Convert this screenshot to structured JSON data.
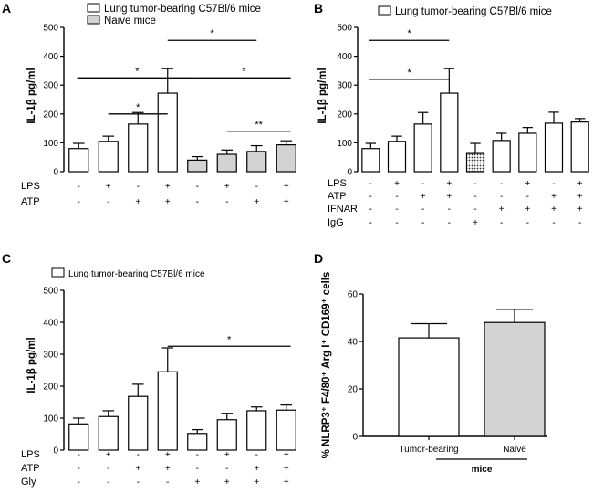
{
  "chart_data": [
    {
      "id": "A",
      "type": "bar",
      "panel_label": "A",
      "ylabel": "IL-1β pg/ml",
      "ylim": [
        0,
        500
      ],
      "yticks": [
        0,
        100,
        200,
        300,
        400,
        500
      ],
      "legend": [
        {
          "label": "Lung tumor-bearing C57Bl/6 mice",
          "fill": "#ffffff"
        },
        {
          "label": "Naive mice",
          "fill": "#d3d3d3"
        }
      ],
      "values": [
        80,
        105,
        165,
        272,
        40,
        60,
        70,
        93
      ],
      "errors": [
        18,
        18,
        40,
        85,
        12,
        15,
        20,
        14
      ],
      "fills": [
        "#ffffff",
        "#ffffff",
        "#ffffff",
        "#ffffff",
        "#d3d3d3",
        "#d3d3d3",
        "#d3d3d3",
        "#d3d3d3"
      ],
      "rows": [
        {
          "label": "LPS",
          "cells": [
            "-",
            "+",
            "-",
            "+",
            "-",
            "+",
            "-",
            "+"
          ]
        },
        {
          "label": "ATP",
          "cells": [
            "-",
            "-",
            "+",
            "+",
            "-",
            "-",
            "+",
            "+"
          ]
        }
      ],
      "significance": [
        {
          "from": 1,
          "to": 3,
          "y": 200,
          "label": "*"
        },
        {
          "from": 0,
          "to": 4,
          "y": 325,
          "label": "*"
        },
        {
          "from": 3,
          "to": 6,
          "y": 455,
          "label": "*"
        },
        {
          "from": 4,
          "to": 8,
          "y": 325,
          "label": "*"
        },
        {
          "from": 5,
          "to": 8,
          "y": 140,
          "label": "**"
        }
      ]
    },
    {
      "id": "B",
      "type": "bar",
      "panel_label": "B",
      "ylabel": "IL-1β pg/ml",
      "ylim": [
        0,
        500
      ],
      "yticks": [
        0,
        100,
        200,
        300,
        400,
        500
      ],
      "legend": [
        {
          "label": "Lung tumor-bearing C57Bl/6 mice",
          "fill": "#ffffff"
        }
      ],
      "values": [
        80,
        105,
        165,
        272,
        63,
        108,
        133,
        168,
        172
      ],
      "errors": [
        18,
        18,
        40,
        85,
        35,
        25,
        20,
        38,
        12
      ],
      "fills": [
        "#ffffff",
        "#ffffff",
        "#ffffff",
        "#ffffff",
        "dots",
        "#ffffff",
        "#ffffff",
        "#ffffff",
        "#ffffff"
      ],
      "rows": [
        {
          "label": "LPS",
          "cells": [
            "-",
            "+",
            "-",
            "+",
            "-",
            "-",
            "+",
            "-",
            "+"
          ]
        },
        {
          "label": "ATP",
          "cells": [
            "-",
            "-",
            "+",
            "+",
            "-",
            "-",
            "-",
            "+",
            "+"
          ]
        },
        {
          "label": "IFNAR",
          "cells": [
            "-",
            "-",
            "-",
            "-",
            "-",
            "+",
            "+",
            "+",
            "+"
          ]
        },
        {
          "label": "IgG",
          "cells": [
            "-",
            "-",
            "-",
            "-",
            "+",
            "-",
            "-",
            "-",
            "-"
          ]
        }
      ],
      "significance": [
        {
          "from": 0,
          "to": 3,
          "y": 455,
          "label": "*"
        },
        {
          "from": 0,
          "to": 3,
          "y": 320,
          "label": "*"
        }
      ]
    },
    {
      "id": "C",
      "type": "bar",
      "panel_label": "C",
      "ylabel": "IL-1β pg/ml",
      "ylim": [
        0,
        500
      ],
      "yticks": [
        0,
        100,
        200,
        300,
        400,
        500
      ],
      "legend": [
        {
          "label": "Lung tumor-bearing C57Bl/6 mice",
          "fill": "#ffffff"
        }
      ],
      "values": [
        82,
        105,
        168,
        245,
        52,
        95,
        123,
        125
      ],
      "errors": [
        18,
        18,
        38,
        75,
        12,
        20,
        12,
        16
      ],
      "fills": [
        "#ffffff",
        "#ffffff",
        "#ffffff",
        "#ffffff",
        "#ffffff",
        "#ffffff",
        "#ffffff",
        "#ffffff"
      ],
      "rows": [
        {
          "label": "LPS",
          "cells": [
            "-",
            "+",
            "-",
            "+",
            "-",
            "+",
            "-",
            "+"
          ]
        },
        {
          "label": "ATP",
          "cells": [
            "-",
            "-",
            "+",
            "+",
            "-",
            "-",
            "+",
            "+"
          ]
        },
        {
          "label": "Gly",
          "cells": [
            "-",
            "-",
            "-",
            "-",
            "+",
            "+",
            "+",
            "+"
          ]
        }
      ],
      "significance": [
        {
          "from": 3,
          "to": 8,
          "y": 325,
          "label": "*"
        }
      ]
    },
    {
      "id": "D",
      "type": "bar",
      "panel_label": "D",
      "ylabel": "% NLRP3⁺ F4/80⁺ Arg I⁺ CD169⁺ cells",
      "ylim": [
        0,
        60
      ],
      "yticks": [
        0,
        20,
        40,
        60
      ],
      "categories": [
        "Tumor-bearing",
        "Naive"
      ],
      "values": [
        41.5,
        48
      ],
      "errors": [
        6,
        5.5
      ],
      "fills": [
        "#ffffff",
        "#d3d3d3"
      ],
      "xlabel": "mice"
    }
  ]
}
